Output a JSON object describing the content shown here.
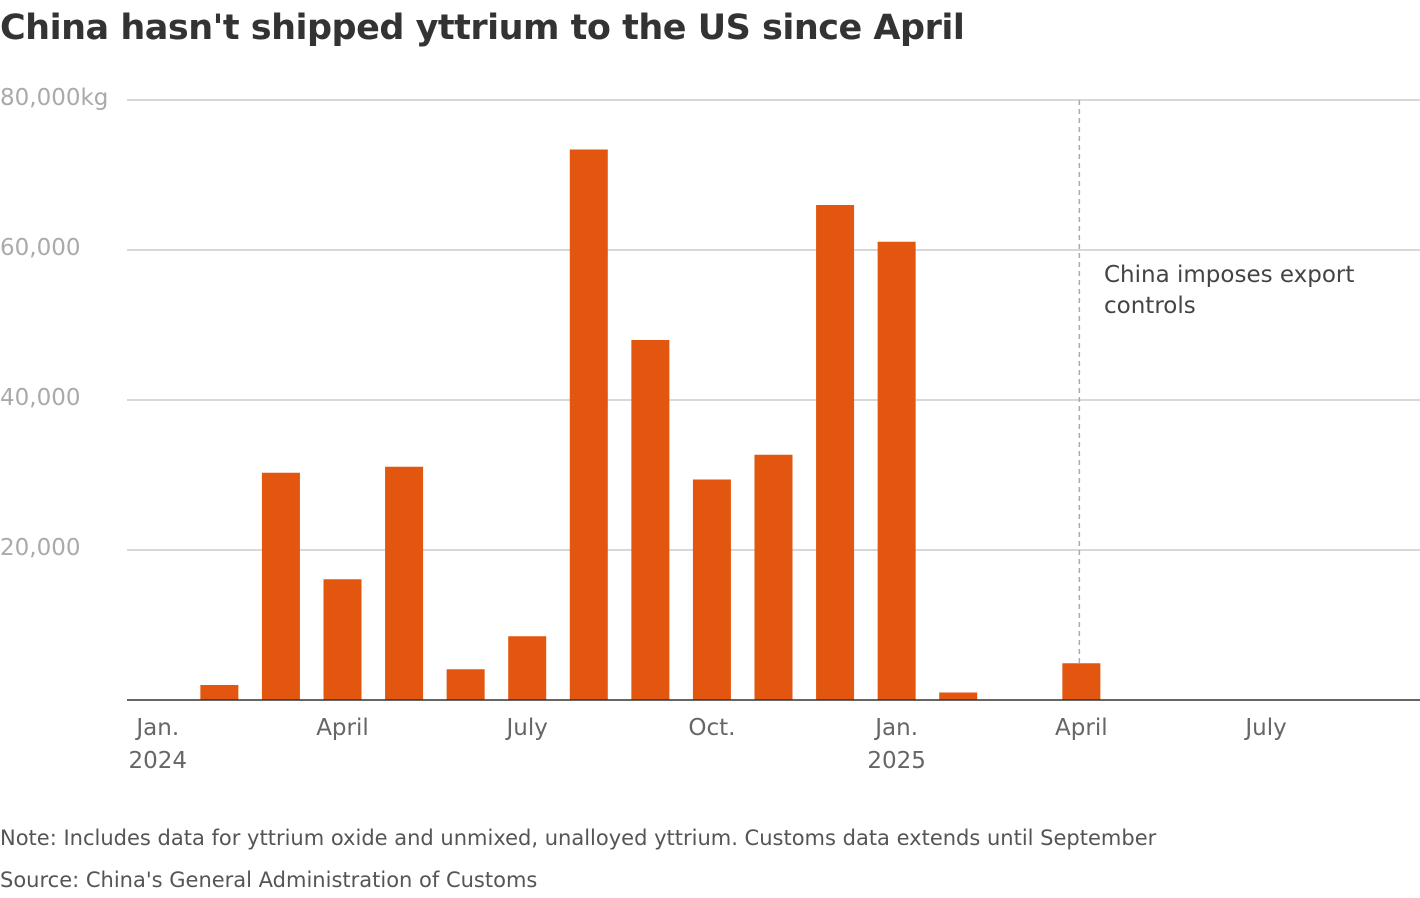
{
  "chart_data": {
    "type": "bar",
    "title": "China hasn't shipped yttrium to the US since April",
    "annotation": "China imposes export controls",
    "note": "Note: Includes data for yttrium oxide and unmixed, unalloyed yttrium. Customs data extends until September",
    "source": "Source: China's General Administration of Customs",
    "categories": [
      "Jan. 2024",
      null,
      null,
      "April",
      null,
      null,
      "July",
      null,
      null,
      "Oct.",
      null,
      null,
      "Jan. 2025",
      null,
      null,
      "April",
      null,
      null,
      "July",
      null,
      null
    ],
    "values": [
      0,
      2000,
      30300,
      16100,
      31100,
      4100,
      8500,
      73400,
      48000,
      29400,
      32700,
      66000,
      61100,
      1000,
      0,
      4900,
      0,
      0,
      0,
      0,
      0
    ],
    "color": "#e3560f",
    "ylim": [
      0,
      80000
    ],
    "yticks": [
      {
        "value": 20000,
        "label": "20,000"
      },
      {
        "value": 40000,
        "label": "40,000"
      },
      {
        "value": 60000,
        "label": "60,000"
      },
      {
        "value": 80000,
        "label": "80,000kg"
      }
    ],
    "grid": true
  }
}
